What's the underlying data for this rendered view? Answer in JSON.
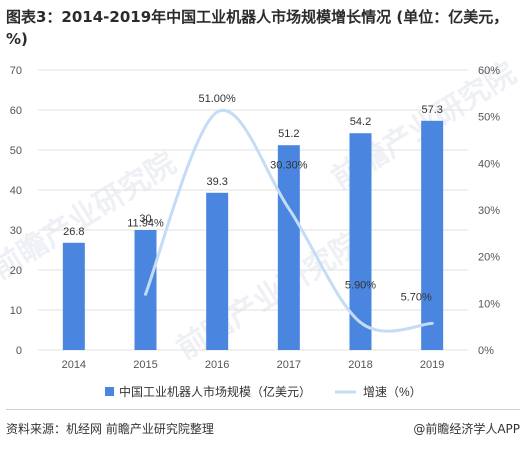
{
  "title": "图表3：2014-2019年中国工业机器人市场规模增长情况 (单位：亿美元，%)",
  "source": "资料来源：机经网 前瞻产业研究院整理",
  "credit": "@前瞻经济学人APP",
  "watermark": "前瞻产业研究院",
  "colors": {
    "bar": "#4a86e0",
    "line": "#c5dcf5",
    "grid": "#e2e2e2"
  },
  "chart_data": {
    "type": "bar",
    "categories": [
      "2014",
      "2015",
      "2016",
      "2017",
      "2018",
      "2019"
    ],
    "series": [
      {
        "name": "中国工业机器人市场规模（亿美元）",
        "type": "bar",
        "axis": "left",
        "values": [
          26.8,
          30,
          39.3,
          51.2,
          54.2,
          57.3
        ],
        "labels": [
          "26.8",
          "30",
          "39.3",
          "51.2",
          "54.2",
          "57.3"
        ]
      },
      {
        "name": "增速（%）",
        "type": "line",
        "axis": "right",
        "values": [
          null,
          11.94,
          51.0,
          30.3,
          5.9,
          5.7
        ],
        "labels": [
          "",
          "11.94%",
          "51.00%",
          "30.30%",
          "5.90%",
          "5.70%"
        ]
      }
    ],
    "y_left": {
      "min": 0,
      "max": 70,
      "step": 10,
      "ticks": [
        "0",
        "10",
        "20",
        "30",
        "40",
        "50",
        "60",
        "70"
      ]
    },
    "y_right": {
      "min": 0,
      "max": 60,
      "step": 10,
      "ticks": [
        "0%",
        "10%",
        "20%",
        "30%",
        "40%",
        "50%",
        "60%"
      ]
    },
    "grid": true,
    "legend": "bottom"
  }
}
